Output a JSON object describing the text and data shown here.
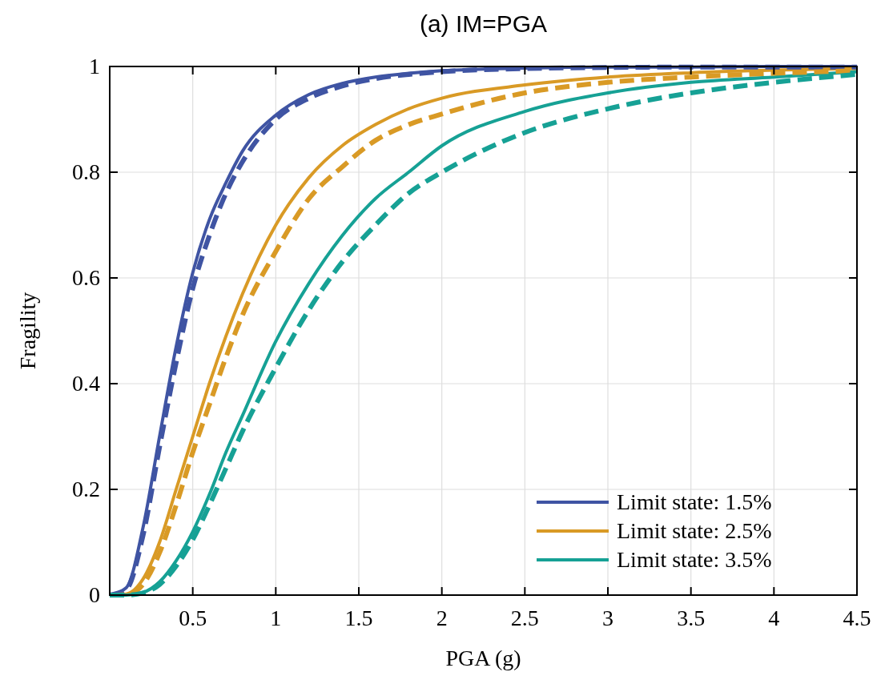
{
  "chart_data": {
    "type": "line",
    "title": "(a) IM=PGA",
    "xlabel": "PGA (g)",
    "ylabel": "Fragility",
    "x": [
      0,
      0.1,
      0.2,
      0.3,
      0.4,
      0.5,
      0.6,
      0.7,
      0.8,
      1,
      1.2,
      1.4,
      1.6,
      1.8,
      2,
      2.5,
      3,
      3.5,
      4,
      4.5
    ],
    "series": [
      {
        "name": "Limit state: 1.5%",
        "color": "#3f54a3",
        "line_style": "solid",
        "values": [
          0,
          0.014,
          0.127,
          0.3,
          0.47,
          0.61,
          0.71,
          0.78,
          0.84,
          0.908,
          0.947,
          0.968,
          0.98,
          0.987,
          0.992,
          0.997,
          0.999,
          0.999,
          1,
          1
        ]
      },
      {
        "name": "Limit state: 2.5%",
        "color": "#d99a25",
        "line_style": "solid",
        "values": [
          0,
          0.002,
          0.03,
          0.1,
          0.2,
          0.3,
          0.4,
          0.49,
          0.57,
          0.7,
          0.79,
          0.85,
          0.89,
          0.92,
          0.94,
          0.965,
          0.98,
          0.988,
          0.993,
          0.996
        ]
      },
      {
        "name": "Limit state: 3.5%",
        "color": "#16a195",
        "line_style": "solid",
        "values": [
          0,
          0,
          0.005,
          0.025,
          0.065,
          0.12,
          0.19,
          0.27,
          0.34,
          0.48,
          0.59,
          0.68,
          0.75,
          0.8,
          0.85,
          0.915,
          0.95,
          0.97,
          0.98,
          0.99
        ]
      },
      {
        "color": "#3f54a3",
        "line_style": "dashed",
        "values": [
          0,
          0.011,
          0.112,
          0.28,
          0.44,
          0.58,
          0.68,
          0.76,
          0.82,
          0.9,
          0.94,
          0.963,
          0.977,
          0.985,
          0.99,
          0.996,
          0.998,
          0.999,
          0.999,
          0.999
        ]
      },
      {
        "color": "#d99a25",
        "line_style": "dashed",
        "values": [
          0,
          0.001,
          0.02,
          0.08,
          0.17,
          0.27,
          0.36,
          0.45,
          0.53,
          0.65,
          0.75,
          0.81,
          0.86,
          0.89,
          0.91,
          0.95,
          0.97,
          0.98,
          0.987,
          0.992
        ]
      },
      {
        "color": "#16a195",
        "line_style": "dashed",
        "values": [
          0,
          0,
          0.004,
          0.02,
          0.055,
          0.105,
          0.17,
          0.24,
          0.31,
          0.43,
          0.54,
          0.63,
          0.7,
          0.76,
          0.8,
          0.875,
          0.92,
          0.95,
          0.97,
          0.985
        ]
      }
    ],
    "xlim": [
      0,
      4.5
    ],
    "xticks": [
      0.5,
      1,
      1.5,
      2,
      2.5,
      3,
      3.5,
      4,
      4.5
    ],
    "ylim": [
      0,
      1
    ],
    "yticks": [
      0,
      0.2,
      0.4,
      0.6,
      0.8,
      1
    ],
    "grid": true,
    "legend": "bottom right"
  }
}
